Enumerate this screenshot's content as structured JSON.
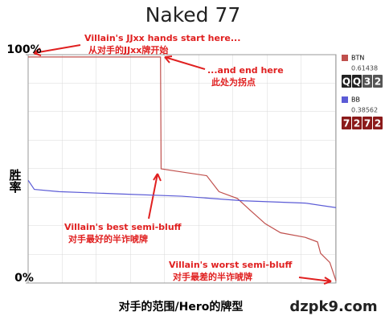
{
  "chart_data": {
    "type": "line",
    "title": "Naked 77",
    "ylabel": "胜率",
    "xlabel": "对手的范围/Hero的牌型",
    "watermark": "dzpk9.com",
    "ylim": [
      0,
      100
    ],
    "xlim": [
      0,
      100
    ],
    "yticks": [
      {
        "value": 100,
        "label": "100%"
      },
      {
        "value": 0,
        "label": "0%"
      }
    ],
    "series": [
      {
        "name": "BTN",
        "color": "#c0504d",
        "equity": 0.61438,
        "hand": [
          "Q",
          "Q",
          "3",
          "2"
        ],
        "x": [
          0,
          43,
          43.2,
          48,
          58,
          62,
          68,
          72,
          77,
          82,
          90,
          94,
          95,
          98,
          100
        ],
        "values": [
          99,
          99,
          50,
          49,
          47,
          40,
          37,
          32,
          26,
          22,
          20,
          18,
          13,
          9,
          1
        ]
      },
      {
        "name": "BB",
        "color": "#5b5bd6",
        "equity": 0.38562,
        "hand": [
          "7",
          "2",
          "7",
          "2"
        ],
        "x": [
          0,
          2,
          10,
          30,
          50,
          70,
          90,
          100
        ],
        "values": [
          45,
          41,
          40,
          39,
          38,
          36,
          35,
          33
        ]
      }
    ],
    "annotations": [
      {
        "lines": [
          "Villain's JJxx hands start here...",
          "从对手的JJxx牌开始"
        ]
      },
      {
        "lines": [
          "...and end here",
          "此处为拐点"
        ]
      },
      {
        "lines": [
          "Villain's best semi-bluff",
          "对手最好的半诈唬牌"
        ]
      },
      {
        "lines": [
          "Villain's worst semi-bluff",
          "对手最差的半诈唬牌"
        ]
      }
    ]
  }
}
